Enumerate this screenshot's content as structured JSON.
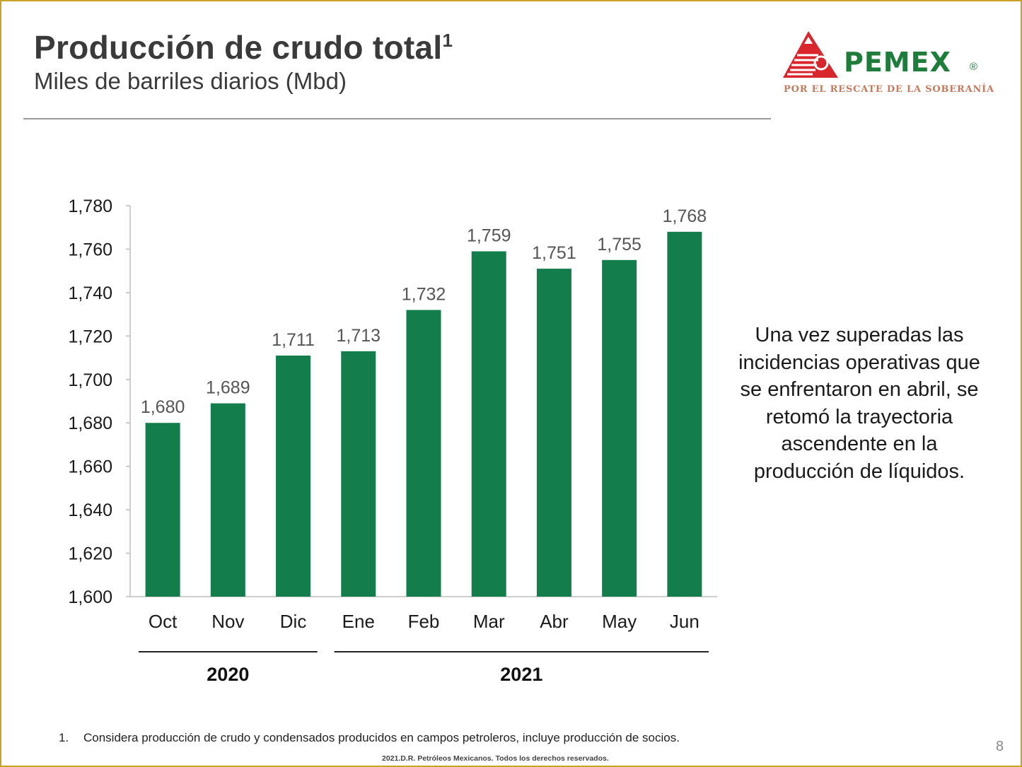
{
  "header": {
    "title": "Producción de crudo total",
    "title_superscript": "1",
    "subtitle": "Miles de barriles diarios (Mbd)"
  },
  "logo": {
    "name": "PEMEX",
    "registered_mark": "®",
    "tagline": "POR EL RESCATE DE LA SOBERANÍA",
    "brand_green": "#1e7d3a",
    "brand_red": "#d9262c"
  },
  "chart_data": {
    "type": "bar",
    "categories": [
      "Oct",
      "Nov",
      "Dic",
      "Ene",
      "Feb",
      "Mar",
      "Abr",
      "May",
      "Jun"
    ],
    "values": [
      1680,
      1689,
      1711,
      1713,
      1732,
      1759,
      1751,
      1755,
      1768
    ],
    "value_labels": [
      "1,680",
      "1,689",
      "1,711",
      "1,713",
      "1,732",
      "1,759",
      "1,751",
      "1,755",
      "1,768"
    ],
    "y_ticks": [
      "1,600",
      "1,620",
      "1,640",
      "1,660",
      "1,680",
      "1,700",
      "1,720",
      "1,740",
      "1,760",
      "1,780"
    ],
    "ylim": [
      1600,
      1780
    ],
    "year_groups": [
      {
        "label": "2020",
        "categories": [
          "Oct",
          "Nov",
          "Dic"
        ]
      },
      {
        "label": "2021",
        "categories": [
          "Ene",
          "Feb",
          "Mar",
          "Abr",
          "May",
          "Jun"
        ]
      }
    ],
    "bar_color": "#137d4c",
    "grid": false
  },
  "side_text": "Una vez superadas las incidencias operativas que se enfrentaron en abril, se retomó la trayectoria ascendente en la producción de líquidos.",
  "footnote": {
    "number": "1.",
    "text": "Considera producción de crudo y condensados producidos en campos petroleros, incluye producción de socios."
  },
  "copyright": "2021.D.R.  Petróleos  Mexicanos.  Todos los derechos  reservados.",
  "page_number": "8"
}
